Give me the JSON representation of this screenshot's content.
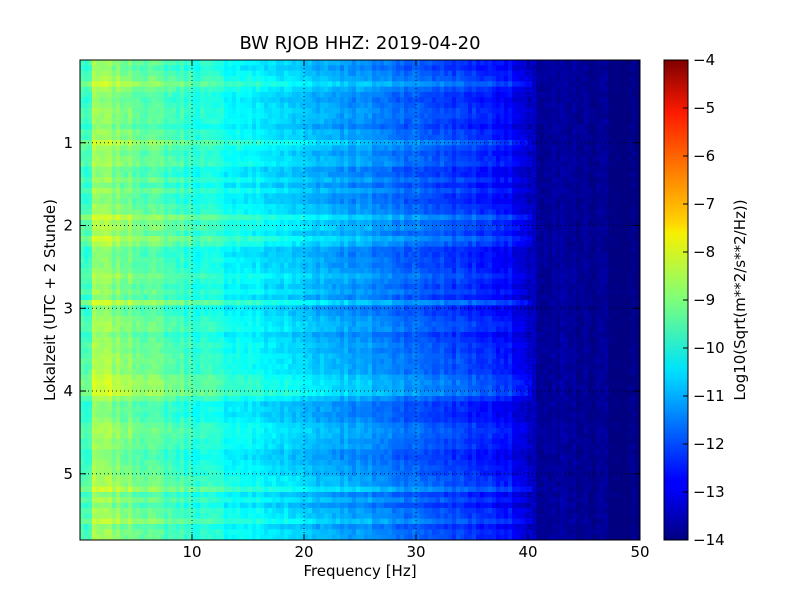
{
  "chart_data": {
    "type": "heatmap",
    "title": "BW RJOB HHZ: 2019-04-20",
    "xlabel": "Frequency [Hz]",
    "ylabel": "Lokalzeit (UTC + 2 Stunde)",
    "xlim": [
      0,
      50
    ],
    "ylim": [
      0,
      5.8
    ],
    "y_inverted": true,
    "x_ticks": [
      10,
      20,
      30,
      40,
      50
    ],
    "y_ticks": [
      1,
      2,
      3,
      4,
      5
    ],
    "colormap": "jet",
    "colorbar": {
      "label": "Log10(Sqrt(m**2/s**2/Hz))",
      "range": [
        -14,
        -4
      ],
      "ticks": [
        -4,
        -5,
        -6,
        -7,
        -8,
        -9,
        -10,
        -11,
        -12,
        -13,
        -14
      ]
    },
    "grid": true,
    "approx_levels": [
      {
        "freq_hz": 2,
        "value": -8.8
      },
      {
        "freq_hz": 10,
        "value": -9.8
      },
      {
        "freq_hz": 20,
        "value": -10.8
      },
      {
        "freq_hz": 30,
        "value": -11.8
      },
      {
        "freq_hz": 38,
        "value": -12.6
      },
      {
        "freq_hz": 41,
        "value": -13.7
      },
      {
        "freq_hz": 50,
        "value": -14.0
      }
    ]
  }
}
